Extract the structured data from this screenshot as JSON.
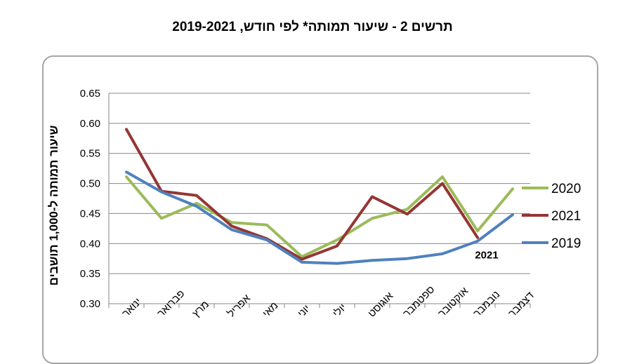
{
  "chart_data": {
    "type": "line",
    "title": "תרשים 2 - שיעור תמותה* לפי חודש, 2019-2021",
    "ylabel": "שיעור תמותה ל-1,000 תושבים",
    "xlabel": "",
    "ylim": [
      0.3,
      0.65
    ],
    "yticks": [
      "0.65",
      "0.60",
      "0.55",
      "0.50",
      "0.45",
      "0.40",
      "0.35",
      "0.30"
    ],
    "grid": true,
    "legend_position": "right",
    "categories": [
      "ינואר",
      "פברואר",
      "מרץ",
      "אפריל",
      "מאי",
      "יוני",
      "יולי",
      "אוגוסט",
      "ספטמבר",
      "אוקטובר",
      "נובמבר",
      "דצמבר"
    ],
    "series": [
      {
        "name": "2020",
        "color": "#9bbb59",
        "values": [
          0.511,
          0.442,
          0.467,
          0.435,
          0.431,
          0.378,
          0.406,
          0.442,
          0.457,
          0.511,
          0.421,
          0.491
        ]
      },
      {
        "name": "2021",
        "color": "#943634",
        "values": [
          0.59,
          0.487,
          0.48,
          0.429,
          0.408,
          0.374,
          0.396,
          0.478,
          0.449,
          0.5,
          0.41,
          null
        ]
      },
      {
        "name": "2019",
        "color": "#4f81bd",
        "values": [
          0.519,
          0.486,
          0.462,
          0.423,
          0.406,
          0.369,
          0.367,
          0.372,
          0.375,
          0.383,
          0.404,
          0.448
        ]
      }
    ],
    "annotations": [
      {
        "text": "2021",
        "category": "נובמבר"
      }
    ]
  }
}
